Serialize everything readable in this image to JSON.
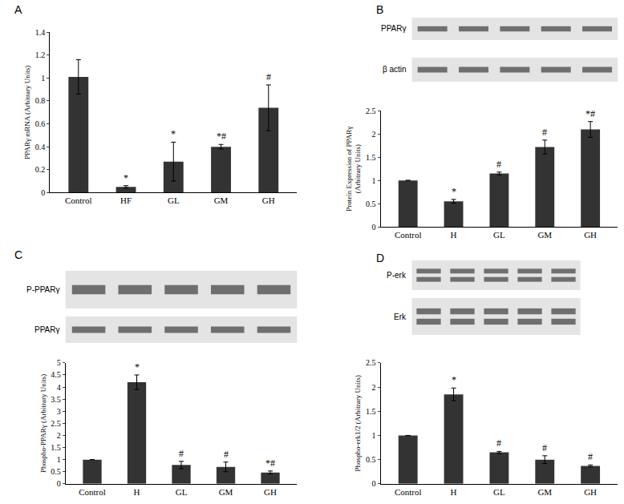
{
  "chart_data": [
    {
      "type": "bar",
      "panel": "A",
      "y_label": [
        "PPARγ mRNA (Arbitrary Units)"
      ],
      "categories": [
        "Control",
        "HF",
        "GL",
        "GM",
        "GH"
      ],
      "values": [
        1.01,
        0.05,
        0.27,
        0.4,
        0.74
      ],
      "errors": [
        0.15,
        0.01,
        0.17,
        0.02,
        0.2
      ],
      "annotations": [
        null,
        "*",
        "*",
        "*#",
        "#"
      ],
      "color": "#333333",
      "ylim": [
        0,
        1.4
      ],
      "yticks": [
        0,
        0.2,
        0.4,
        0.6,
        0.8,
        1,
        1.2,
        1.4
      ],
      "grid": false,
      "blots": []
    },
    {
      "type": "bar",
      "panel": "B",
      "y_label": [
        "Protein Expression of PPARγ",
        "(Arbitrary Units)"
      ],
      "categories": [
        "Control",
        "H",
        "GL",
        "GM",
        "GH"
      ],
      "values": [
        1,
        0.55,
        1.15,
        1.72,
        2.1
      ],
      "errors": [
        0,
        0.04,
        0.03,
        0.15,
        0.17
      ],
      "annotations": [
        null,
        "*",
        "#",
        "#",
        "*#"
      ],
      "color": "#333333",
      "ylim": [
        0,
        2.5
      ],
      "yticks": [
        0,
        0.5,
        1,
        1.5,
        2,
        2.5
      ],
      "grid": false,
      "blots": [
        "PPARγ",
        "β actin"
      ]
    },
    {
      "type": "bar",
      "panel": "C",
      "y_label": [
        "Phospho-PPARγ (Arbitrary Units)"
      ],
      "categories": [
        "Control",
        "H",
        "GL",
        "GM",
        "GH"
      ],
      "values": [
        1,
        4.2,
        0.78,
        0.7,
        0.47
      ],
      "errors": [
        0,
        0.3,
        0.15,
        0.2,
        0.06
      ],
      "annotations": [
        null,
        "*",
        "#",
        "#",
        "*#"
      ],
      "color": "#333333",
      "ylim": [
        0,
        5
      ],
      "yticks": [
        0,
        0.5,
        1,
        1.5,
        2,
        2.5,
        3,
        3.5,
        4,
        4.5,
        5
      ],
      "grid": false,
      "blots": [
        "P-PPARγ",
        "PPARγ"
      ]
    },
    {
      "type": "bar",
      "panel": "D",
      "y_label": [
        "Phospho-erk1/2 (Arbitrary Units)"
      ],
      "categories": [
        "Control",
        "H",
        "GL",
        "GM",
        "GH"
      ],
      "values": [
        1,
        1.85,
        0.65,
        0.5,
        0.37
      ],
      "errors": [
        0,
        0.13,
        0.02,
        0.08,
        0.02
      ],
      "annotations": [
        null,
        "*",
        "#",
        "#",
        "#"
      ],
      "color": "#333333",
      "ylim": [
        0,
        2.5
      ],
      "yticks": [
        0,
        0.5,
        1,
        1.5,
        2,
        2.5
      ],
      "grid": false,
      "blots": [
        "P-erk",
        "Erk"
      ]
    }
  ]
}
